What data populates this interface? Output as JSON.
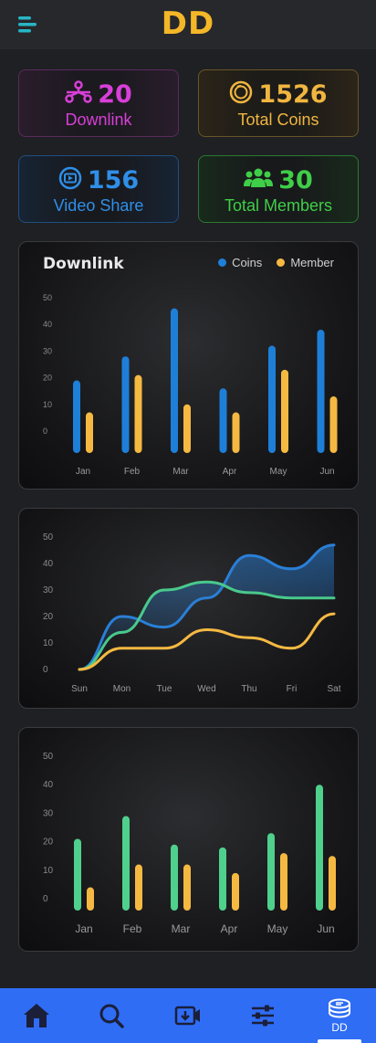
{
  "header": {
    "logo": "DD",
    "menu_icon": "hamburger-menu-icon"
  },
  "stats": {
    "downlink": {
      "value": "20",
      "label": "Downlink",
      "icon": "network-icon",
      "color": "#d83fd8"
    },
    "coins": {
      "value": "1526",
      "label": "Total Coins",
      "icon": "coin-icon",
      "color": "#f0b640"
    },
    "video_share": {
      "value": "156",
      "label": "Video Share",
      "icon": "video-share-icon",
      "color": "#2f8fe8"
    },
    "members": {
      "value": "30",
      "label": "Total Members",
      "icon": "users-icon",
      "color": "#3fce48"
    }
  },
  "charts": {
    "downlink": {
      "title": "Downlink"
    }
  },
  "chart_data": [
    {
      "type": "bar",
      "title": "Downlink",
      "categories": [
        "Jan",
        "Feb",
        "Mar",
        "Apr",
        "May",
        "Jun"
      ],
      "series": [
        {
          "name": "Coins",
          "values": [
            19,
            28,
            46,
            16,
            32,
            38
          ],
          "color": "#1e7fd8"
        },
        {
          "name": "Member",
          "values": [
            7,
            21,
            10,
            7,
            23,
            13
          ],
          "color": "#f5b942"
        }
      ],
      "yticks": [
        0,
        10,
        20,
        30,
        40,
        50
      ],
      "legend": "top-right",
      "grid": false
    },
    {
      "type": "line",
      "categories": [
        "Sun",
        "Mon",
        "Tue",
        "Wed",
        "Thu",
        "Fri",
        "Sat"
      ],
      "series": [
        {
          "values": [
            0,
            20,
            16,
            27,
            43,
            38,
            47
          ],
          "color": "#2a7fd6"
        },
        {
          "values": [
            0,
            14,
            30,
            33,
            29,
            27,
            27
          ],
          "color": "#49c98c"
        },
        {
          "values": [
            0,
            8,
            8,
            15,
            12,
            8,
            21
          ],
          "color": "#f5b942"
        }
      ],
      "yticks": [
        0,
        10,
        20,
        30,
        40,
        50
      ],
      "grid": false
    },
    {
      "type": "bar",
      "categories": [
        "Jan",
        "Feb",
        "Mar",
        "Apr",
        "May",
        "Jun"
      ],
      "series": [
        {
          "values": [
            21,
            29,
            19,
            18,
            23,
            40
          ],
          "color": "#4fd08c"
        },
        {
          "values": [
            4,
            12,
            12,
            9,
            16,
            15
          ],
          "color": "#f5b942"
        }
      ],
      "yticks": [
        0,
        10,
        20,
        30,
        40,
        50
      ],
      "grid": false
    }
  ],
  "nav": {
    "home_icon": "home-icon",
    "search_icon": "search-icon",
    "video_icon": "video-download-icon",
    "settings_icon": "sliders-icon",
    "dd_icon": "coin-stack-icon",
    "dd_label": "DD",
    "active": "DD"
  }
}
